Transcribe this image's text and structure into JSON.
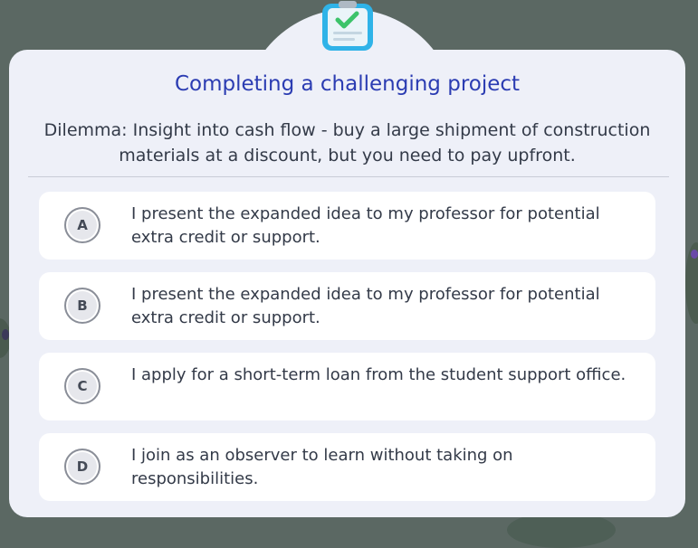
{
  "header": {
    "icon": "clipboard-check-icon",
    "title": "Completing a challenging project",
    "dilemma": "Dilemma: Insight into cash flow - buy a large shipment of construction materials at a discount, but you need to pay upfront."
  },
  "options": [
    {
      "letter": "A",
      "text": "I present the expanded idea to my professor for potential extra credit or support."
    },
    {
      "letter": "B",
      "text": "I present the expanded idea to my professor for potential extra credit or support."
    },
    {
      "letter": "C",
      "text": "I apply for a short-term loan from the student support office."
    },
    {
      "letter": "D",
      "text": "I join as an observer to learn without taking on responsibilities."
    }
  ],
  "colors": {
    "title": "#2b3cb2",
    "panel": "#eef0f8",
    "background": "#5b6863",
    "icon_accent": "#2fb3e8",
    "check": "#3cc36a"
  }
}
